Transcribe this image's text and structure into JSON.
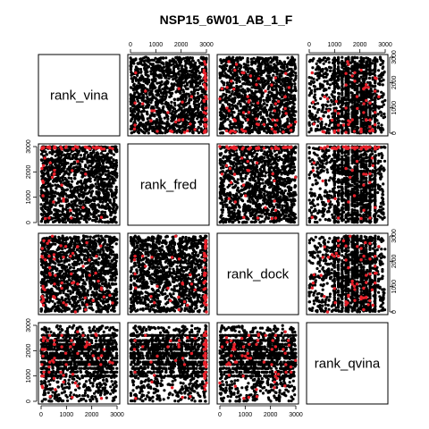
{
  "chart_data": {
    "type": "scatter",
    "subtype": "pairs-matrix",
    "title": "NSP15_6W01_AB_1_F",
    "variables": [
      "rank_vina",
      "rank_fred",
      "rank_dock",
      "rank_qvina"
    ],
    "axis_range": [
      0,
      3000
    ],
    "tick_values": [
      0,
      1000,
      2000,
      3000
    ],
    "tick_labels": [
      "0",
      "1000",
      "2000",
      "3000"
    ],
    "grid": false,
    "legend": "none",
    "colors": {
      "background_points": "#000000",
      "highlight_points": "#e8202a",
      "frame": "#000000"
    },
    "series": [
      {
        "role": "all ranked ligands",
        "color": "#000000",
        "count_approx": 3000,
        "distribution": "uniform over 0-3000 on each rank"
      },
      {
        "role": "highlighted ligands",
        "color": "#e8202a",
        "count_approx": 60
      }
    ],
    "notes": "rank_fred shows many ties near 3000; rank_qvina shows heavy ties at discrete values (horizontal/vertical bands)."
  }
}
